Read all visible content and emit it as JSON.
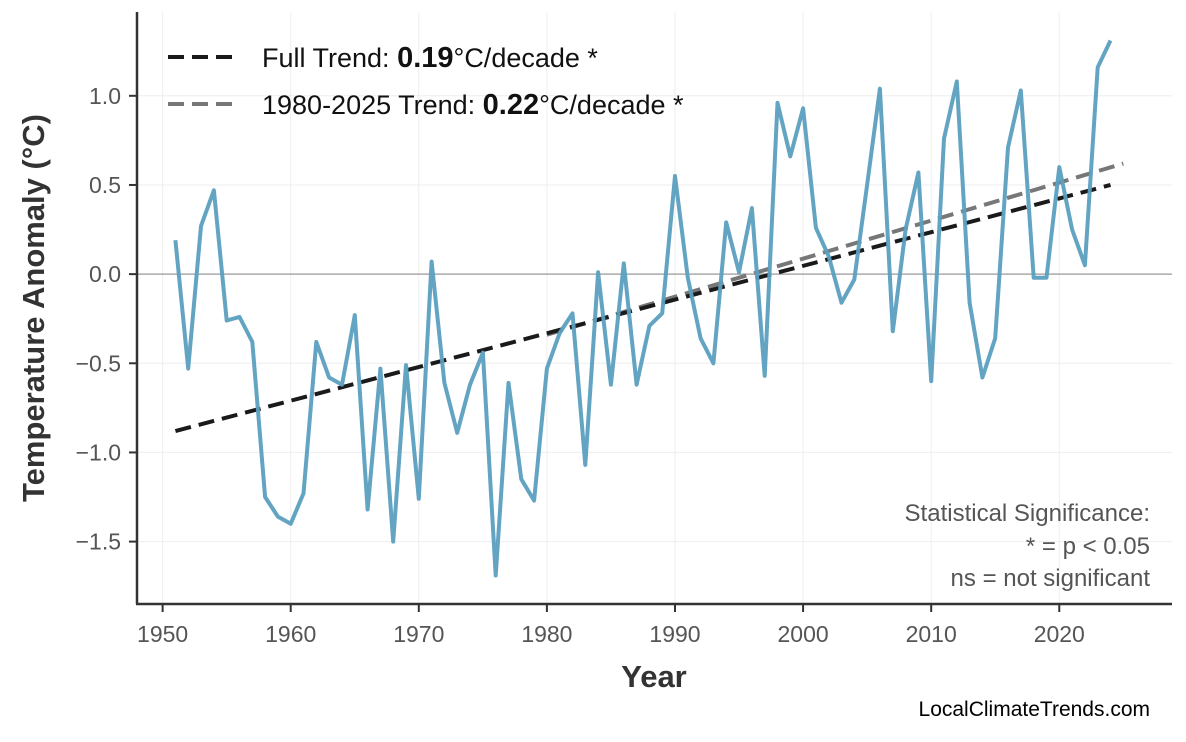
{
  "chart_data": {
    "type": "line",
    "xlabel": "Year",
    "ylabel": "Temperature Anomaly (°C)",
    "xlim": [
      1948,
      2028.8
    ],
    "ylim": [
      -1.85,
      1.47
    ],
    "xticks": [
      1950,
      1960,
      1970,
      1980,
      1990,
      2000,
      2010,
      2020
    ],
    "yticks": [
      -1.5,
      -1.0,
      -0.5,
      0.0,
      0.5,
      1.0
    ],
    "ytick_labels": [
      "−1.5",
      "−1.0",
      "−0.5",
      "0.0",
      "0.5",
      "1.0"
    ],
    "grid": true,
    "zero_line": true,
    "series_color": "#5b9fc0",
    "x": [
      1951,
      1952,
      1953,
      1954,
      1955,
      1956,
      1957,
      1958,
      1959,
      1960,
      1961,
      1962,
      1963,
      1964,
      1965,
      1966,
      1967,
      1968,
      1969,
      1970,
      1971,
      1972,
      1973,
      1974,
      1975,
      1976,
      1977,
      1978,
      1979,
      1980,
      1981,
      1982,
      1983,
      1984,
      1985,
      1986,
      1987,
      1988,
      1989,
      1990,
      1991,
      1992,
      1993,
      1994,
      1995,
      1996,
      1997,
      1998,
      1999,
      2000,
      2001,
      2002,
      2003,
      2004,
      2005,
      2006,
      2007,
      2008,
      2009,
      2010,
      2011,
      2012,
      2013,
      2014,
      2015,
      2016,
      2017,
      2018,
      2019,
      2020,
      2021,
      2022,
      2023,
      2024
    ],
    "y": [
      0.19,
      -0.53,
      0.27,
      0.47,
      -0.26,
      -0.24,
      -0.38,
      -1.25,
      -1.36,
      -1.4,
      -1.23,
      -0.38,
      -0.58,
      -0.62,
      -0.23,
      -1.32,
      -0.53,
      -1.5,
      -0.51,
      -1.26,
      0.07,
      -0.61,
      -0.89,
      -0.62,
      -0.44,
      -1.69,
      -0.61,
      -1.15,
      -1.27,
      -0.53,
      -0.33,
      -0.22,
      -1.07,
      0.01,
      -0.62,
      0.06,
      -0.62,
      -0.29,
      -0.22,
      0.55,
      -0.02,
      -0.36,
      -0.5,
      0.29,
      0.01,
      0.37,
      -0.57,
      0.96,
      0.66,
      0.93,
      0.26,
      0.1,
      -0.16,
      -0.03,
      0.5,
      1.04,
      -0.32,
      0.25,
      0.57,
      -0.6,
      0.76,
      1.08,
      -0.16,
      -0.58,
      -0.36,
      0.71,
      1.03,
      -0.02,
      -0.02,
      0.6,
      0.25,
      0.05,
      1.16,
      1.31
    ],
    "trends": [
      {
        "label_prefix": "Full Trend: ",
        "value": "0.19",
        "label_suffix": "°C/decade *",
        "color": "#1a1a1a",
        "x": [
          1951,
          2024
        ],
        "y": [
          -0.88,
          0.5
        ]
      },
      {
        "label_prefix": "1980-2025 Trend: ",
        "value": "0.22",
        "label_suffix": "°C/decade *",
        "color": "#777777",
        "x": [
          1980,
          2025
        ],
        "y": [
          -0.34,
          0.62
        ]
      }
    ],
    "legend_position": "top-left",
    "annotation": [
      "Statistical Significance:",
      "* = p < 0.05",
      "ns = not significant"
    ],
    "credit": "LocalClimateTrends.com"
  }
}
